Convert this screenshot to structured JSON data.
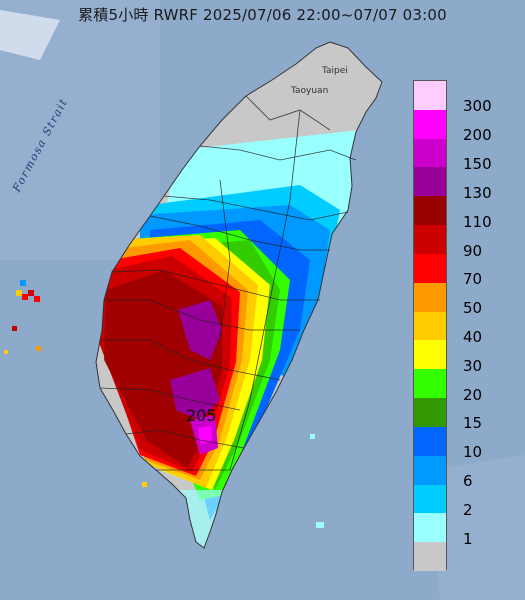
{
  "title": "累積5小時 RWRF 2025/07/06 22:00~07/07 03:00",
  "max_value_label": "205",
  "strait_label": "Formosa Strait",
  "city_labels": {
    "taipei": "Taipei",
    "taoyuan": "Taoyuan"
  },
  "legend": {
    "items": [
      {
        "label": "300",
        "color": "#ffccff"
      },
      {
        "label": "200",
        "color": "#ff00ff"
      },
      {
        "label": "150",
        "color": "#cc00cc"
      },
      {
        "label": "130",
        "color": "#990099"
      },
      {
        "label": "110",
        "color": "#990000"
      },
      {
        "label": "90",
        "color": "#cc0000"
      },
      {
        "label": "70",
        "color": "#ff0000"
      },
      {
        "label": "50",
        "color": "#ff9900"
      },
      {
        "label": "40",
        "color": "#ffcc00"
      },
      {
        "label": "30",
        "color": "#ffff00"
      },
      {
        "label": "20",
        "color": "#33ff00"
      },
      {
        "label": "15",
        "color": "#339900"
      },
      {
        "label": "10",
        "color": "#0066ff"
      },
      {
        "label": "6",
        "color": "#0099ff"
      },
      {
        "label": "2",
        "color": "#00ccff"
      },
      {
        "label": "1",
        "color": "#99ffff"
      },
      {
        "label": "",
        "color": "#c8c8c8"
      }
    ]
  }
}
